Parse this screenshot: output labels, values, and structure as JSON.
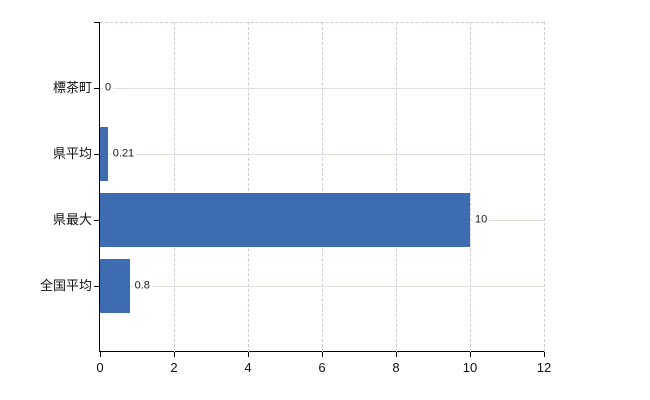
{
  "chart_data": {
    "type": "bar",
    "orientation": "horizontal",
    "categories": [
      "標茶町",
      "県平均",
      "県最大",
      "全国平均"
    ],
    "values": [
      0,
      0.21,
      10,
      0.8
    ],
    "value_labels": [
      "0",
      "0.21",
      "10",
      "0.8"
    ],
    "x_ticks": [
      0,
      2,
      4,
      6,
      8,
      10,
      12
    ],
    "x_tick_labels": [
      "0",
      "2",
      "4",
      "6",
      "8",
      "10",
      "12"
    ],
    "xlim": [
      0,
      12
    ],
    "grid": {
      "vertical_style": "dashed",
      "horizontal_style": "solid",
      "top_border_style": "dashed"
    },
    "legend": "none",
    "colors": {
      "bar": "#3d6db0",
      "axis": "#000000",
      "h_gridline": "#dce3db",
      "v_gridline": "#cfc9d6",
      "text": "#111111",
      "value_label_text": "#1a1a1a",
      "background": "#ffffff"
    }
  }
}
